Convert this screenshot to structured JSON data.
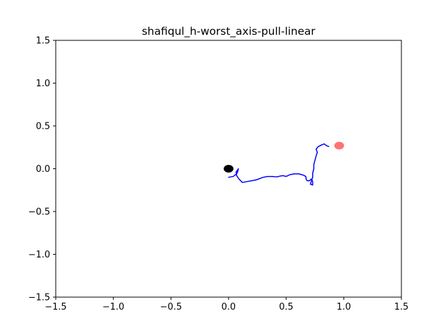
{
  "chart_data": {
    "type": "line",
    "title": "shafiqul_h-worst_axis-pull-linear",
    "xlabel": "",
    "ylabel": "",
    "xlim": [
      -1.5,
      1.5
    ],
    "ylim": [
      -1.5,
      1.5
    ],
    "xticks": [
      -1.5,
      -1.0,
      -0.5,
      0.0,
      0.5,
      1.0,
      1.5
    ],
    "xtick_labels": [
      "−1.5",
      "−1.0",
      "−0.5",
      "0.0",
      "0.5",
      "1.0",
      "1.5"
    ],
    "yticks": [
      -1.5,
      -1.0,
      -0.5,
      0.0,
      0.5,
      1.0,
      1.5
    ],
    "ytick_labels": [
      "−1.5",
      "−1.0",
      "−0.5",
      "0.0",
      "0.5",
      "1.0",
      "1.5"
    ],
    "grid": false,
    "series": [
      {
        "color": "#0000ff",
        "points": [
          [
            0.0,
            -0.1
          ],
          [
            0.04,
            -0.09
          ],
          [
            0.07,
            -0.06
          ],
          [
            0.08,
            -0.03
          ],
          [
            0.085,
            0.0
          ],
          [
            0.075,
            -0.02
          ],
          [
            0.065,
            -0.04
          ],
          [
            0.07,
            -0.08
          ],
          [
            0.09,
            -0.12
          ],
          [
            0.12,
            -0.16
          ],
          [
            0.16,
            -0.15
          ],
          [
            0.2,
            -0.14
          ],
          [
            0.24,
            -0.13
          ],
          [
            0.28,
            -0.11
          ],
          [
            0.3,
            -0.1
          ],
          [
            0.34,
            -0.09
          ],
          [
            0.38,
            -0.09
          ],
          [
            0.42,
            -0.095
          ],
          [
            0.45,
            -0.085
          ],
          [
            0.47,
            -0.08
          ],
          [
            0.5,
            -0.09
          ],
          [
            0.53,
            -0.07
          ],
          [
            0.57,
            -0.06
          ],
          [
            0.61,
            -0.06
          ],
          [
            0.65,
            -0.075
          ],
          [
            0.67,
            -0.09
          ],
          [
            0.675,
            -0.13
          ],
          [
            0.685,
            -0.14
          ],
          [
            0.7,
            -0.14
          ],
          [
            0.72,
            -0.12
          ],
          [
            0.73,
            -0.15
          ],
          [
            0.73,
            -0.19
          ],
          [
            0.71,
            -0.18
          ],
          [
            0.72,
            -0.14
          ],
          [
            0.73,
            -0.1
          ],
          [
            0.73,
            -0.05
          ],
          [
            0.74,
            0.0
          ],
          [
            0.74,
            0.05
          ],
          [
            0.75,
            0.1
          ],
          [
            0.76,
            0.15
          ],
          [
            0.77,
            0.19
          ],
          [
            0.76,
            0.23
          ],
          [
            0.78,
            0.26
          ],
          [
            0.81,
            0.28
          ],
          [
            0.83,
            0.29
          ],
          [
            0.85,
            0.27
          ],
          [
            0.87,
            0.26
          ]
        ]
      }
    ],
    "markers": [
      {
        "x": 0.0,
        "y": 0.0,
        "color": "#000000"
      },
      {
        "x": 0.96,
        "y": 0.27,
        "color": "#ff0000",
        "alpha": 0.55
      }
    ]
  }
}
